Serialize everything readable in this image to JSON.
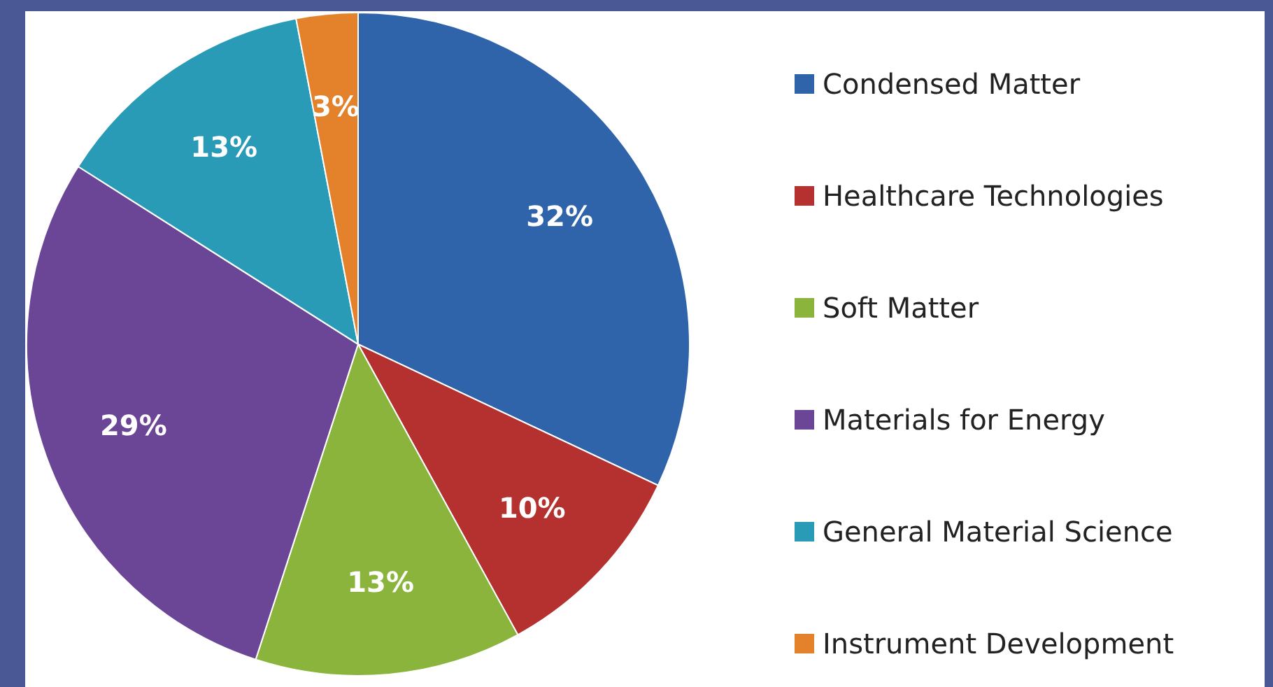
{
  "chart_data": {
    "type": "pie",
    "categories": [
      "Condensed Matter",
      "Healthcare Technologies",
      "Soft Matter",
      "Materials for Energy",
      "General Material Science",
      "Instrument Development"
    ],
    "values": [
      32,
      10,
      13,
      29,
      13,
      3
    ],
    "colors": [
      "#2f64aa",
      "#b5312f",
      "#8ab43c",
      "#6b4596",
      "#2a9bb7",
      "#e3822b"
    ],
    "value_labels": [
      "32%",
      "10%",
      "13%",
      "29%",
      "13%",
      "3%"
    ],
    "legend": "right"
  }
}
